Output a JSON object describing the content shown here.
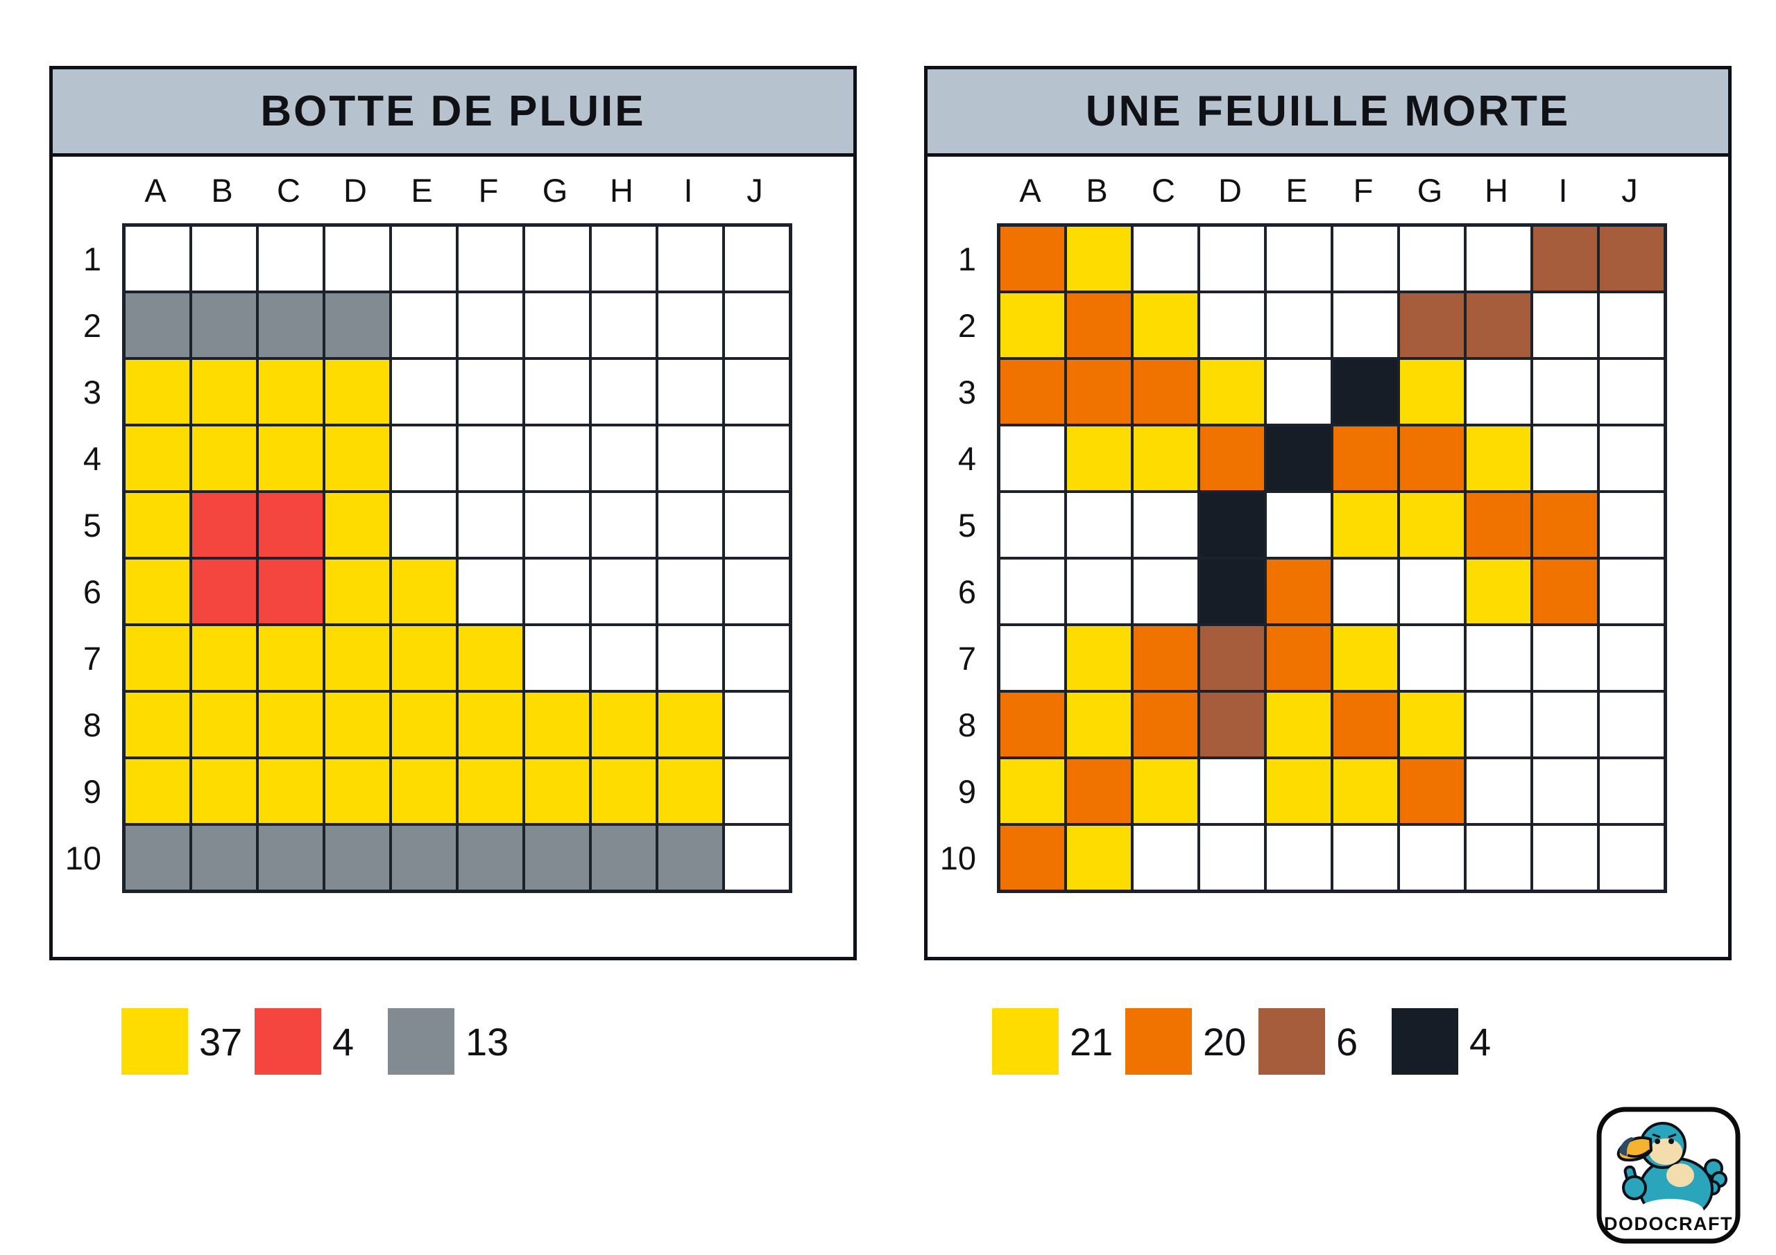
{
  "palette": {
    ".": "#FFFFFF",
    "Y": "#FFDC00",
    "R": "#F4463F",
    "G": "#838B92",
    "O": "#F07300",
    "B": "#A55D3B",
    "K": "#161D27"
  },
  "colors": {
    "header_bg": "#B6C3CE",
    "grid_line": "#1B222B",
    "card_border": "#0D1117",
    "page_bg": "#FFFFFF"
  },
  "cards": [
    {
      "title": "BOTTE DE PLUIE",
      "columns": [
        "A",
        "B",
        "C",
        "D",
        "E",
        "F",
        "G",
        "H",
        "I",
        "J"
      ],
      "rows": [
        "1",
        "2",
        "3",
        "4",
        "5",
        "6",
        "7",
        "8",
        "9",
        "10"
      ],
      "cells": [
        "..........",
        "GGGG......",
        "YYYY......",
        "YYYY......",
        "YRRY......",
        "YRRYY.....",
        "YYYYYY....",
        "YYYYYYYYY.",
        "YYYYYYYYY.",
        "GGGGGGGGG."
      ],
      "legend": [
        {
          "color_key": "Y",
          "color_name": "yellow",
          "count": "37"
        },
        {
          "color_key": "R",
          "color_name": "red",
          "count": "4"
        },
        {
          "color_key": "G",
          "color_name": "gray",
          "count": "13"
        }
      ]
    },
    {
      "title": "UNE FEUILLE MORTE",
      "columns": [
        "A",
        "B",
        "C",
        "D",
        "E",
        "F",
        "G",
        "H",
        "I",
        "J"
      ],
      "rows": [
        "1",
        "2",
        "3",
        "4",
        "5",
        "6",
        "7",
        "8",
        "9",
        "10"
      ],
      "cells": [
        "OY......BB",
        "YOY...BB..",
        "OOOY.KY...",
        ".YYOKOOY..",
        "...K.YYOO.",
        "...KO..YO.",
        ".YOBOY....",
        "OYOBYOY...",
        "YOY.YYO...",
        "OY........"
      ],
      "legend": [
        {
          "color_key": "Y",
          "color_name": "yellow",
          "count": "21"
        },
        {
          "color_key": "O",
          "color_name": "orange",
          "count": "20"
        },
        {
          "color_key": "B",
          "color_name": "brown",
          "count": "6"
        },
        {
          "color_key": "K",
          "color_name": "black",
          "count": "4"
        }
      ]
    }
  ],
  "logo": {
    "text": "DODOCRAFT",
    "bird_body_color": "#2AA5BC",
    "bird_face_color": "#F4DDAC",
    "beak_color": "#F5B32F",
    "beak_tip_color": "#2C4A63"
  }
}
